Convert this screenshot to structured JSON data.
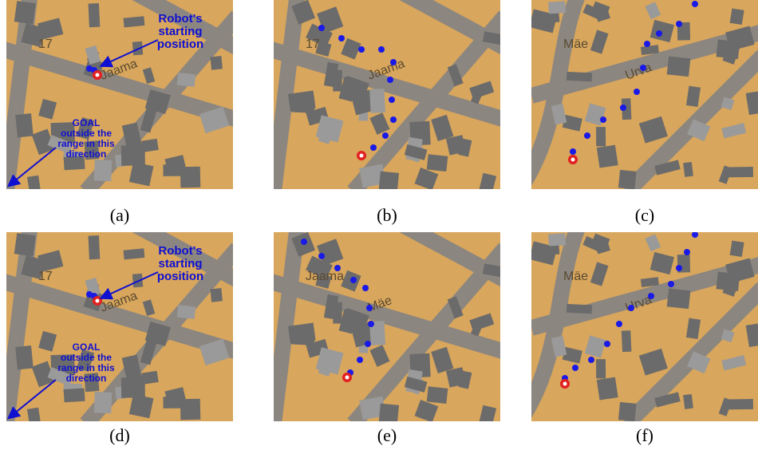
{
  "panels": [
    {
      "caption": "(a)",
      "map_labels": [
        "17",
        "Jaama"
      ],
      "annotations": [
        {
          "lines": [
            "Robot's",
            "starting",
            "position"
          ]
        },
        {
          "lines": [
            "GOAL",
            "outside the",
            "range in this",
            "direction"
          ]
        }
      ]
    },
    {
      "caption": "(b)",
      "map_labels": [
        "17",
        "Jaama"
      ],
      "annotations": []
    },
    {
      "caption": "(c)",
      "map_labels": [
        "Mäe",
        "Urva"
      ],
      "annotations": []
    },
    {
      "caption": "(d)",
      "map_labels": [
        "17",
        "Jaama"
      ],
      "annotations": [
        {
          "lines": [
            "Robot's",
            "starting",
            "position"
          ]
        },
        {
          "lines": [
            "GOAL",
            "outside the",
            "range in this",
            "direction"
          ]
        }
      ]
    },
    {
      "caption": "(e)",
      "map_labels": [
        "Jaama",
        "Mäe"
      ],
      "annotations": []
    },
    {
      "caption": "(f)",
      "map_labels": [
        "Mäe",
        "Urva"
      ],
      "annotations": []
    }
  ]
}
